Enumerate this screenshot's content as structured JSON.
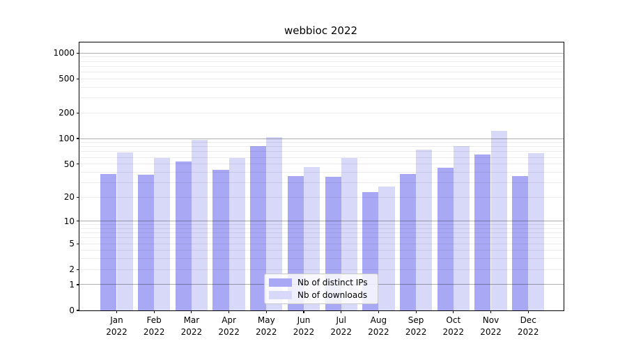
{
  "title": "webbioc 2022",
  "chart_data": {
    "type": "bar",
    "title": "webbioc 2022",
    "categories": [
      "Jan",
      "Feb",
      "Mar",
      "Apr",
      "May",
      "Jun",
      "Jul",
      "Aug",
      "Sep",
      "Oct",
      "Nov",
      "Dec"
    ],
    "category_year": "2022",
    "series": [
      {
        "name": "Nb of distinct IPs",
        "color": "#a8a8f4",
        "values": [
          38,
          37,
          54,
          43,
          82,
          36,
          35,
          23,
          38,
          45,
          65,
          36
        ]
      },
      {
        "name": "Nb of downloads",
        "color": "#d8d8f8",
        "values": [
          68,
          59,
          97,
          59,
          104,
          46,
          59,
          27,
          74,
          82,
          124,
          67
        ]
      }
    ],
    "xlabel": "",
    "ylabel": "",
    "yscale": "log1p",
    "ylim": [
      0,
      1330
    ],
    "yticks": [
      0,
      1,
      2,
      5,
      10,
      20,
      50,
      100,
      200,
      500,
      1000
    ],
    "major_gridlines": [
      1,
      10,
      100,
      1000
    ],
    "minor_gridline_decades": [
      1,
      10,
      100
    ],
    "grid": true,
    "legend_position": "lower center inside"
  },
  "colors": {
    "background": "#ffffff",
    "spine": "#000000",
    "major_grid": "rgba(0,0,0,0.32)",
    "minor_grid": "rgba(0,0,0,0.075)",
    "legend_border": "#c8c8c8",
    "legend_background": "rgba(255,255,255,0.82)"
  }
}
